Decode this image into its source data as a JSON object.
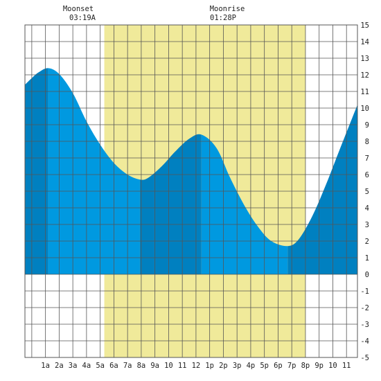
{
  "colors": {
    "background": "#ffffff",
    "daylight": "#f0ea9a",
    "grid": "#555555",
    "tide_light": "#0099e0",
    "tide_dark": "#0080c0",
    "text": "#222222"
  },
  "events": [
    {
      "label": "Moonset",
      "time": "03:19A"
    },
    {
      "label": "Moonrise",
      "time": "01:28P"
    }
  ],
  "chart_data": {
    "type": "area",
    "title": "",
    "xlabel": "",
    "ylabel": "",
    "x_unit": "hour of day",
    "xlim": [
      -0.5,
      23.8
    ],
    "ylim": [
      -5,
      15
    ],
    "grid": true,
    "x_tick_labels": [
      {
        "hour": 1,
        "label": "1a"
      },
      {
        "hour": 2,
        "label": "2a"
      },
      {
        "hour": 3,
        "label": "3a"
      },
      {
        "hour": 4,
        "label": "4a"
      },
      {
        "hour": 5,
        "label": "5a"
      },
      {
        "hour": 6,
        "label": "6a"
      },
      {
        "hour": 7,
        "label": "7a"
      },
      {
        "hour": 8,
        "label": "8a"
      },
      {
        "hour": 9,
        "label": "9a"
      },
      {
        "hour": 10,
        "label": "10"
      },
      {
        "hour": 11,
        "label": "11"
      },
      {
        "hour": 12,
        "label": "12"
      },
      {
        "hour": 13,
        "label": "1p"
      },
      {
        "hour": 14,
        "label": "2p"
      },
      {
        "hour": 15,
        "label": "3p"
      },
      {
        "hour": 16,
        "label": "4p"
      },
      {
        "hour": 17,
        "label": "5p"
      },
      {
        "hour": 18,
        "label": "6p"
      },
      {
        "hour": 19,
        "label": "7p"
      },
      {
        "hour": 20,
        "label": "8p"
      },
      {
        "hour": 21,
        "label": "9p"
      },
      {
        "hour": 22,
        "label": "10"
      },
      {
        "hour": 23,
        "label": "11"
      }
    ],
    "y_ticks": [
      15,
      14,
      13,
      12,
      11,
      10,
      9,
      8,
      7,
      6,
      5,
      4,
      3,
      2,
      1,
      0,
      -1,
      -2,
      -3,
      -4,
      -5
    ],
    "daylight": {
      "start": 5.3,
      "end": 20.0
    },
    "extremes": [
      {
        "hour": 1.2,
        "height": 12.4,
        "kind": "high"
      },
      {
        "hour": 7.9,
        "height": 5.7,
        "kind": "low"
      },
      {
        "hour": 12.4,
        "height": 8.4,
        "kind": "high"
      },
      {
        "hour": 18.7,
        "height": 1.7,
        "kind": "low"
      }
    ],
    "series": [
      {
        "values": [
          [
            -0.5,
            11.4
          ],
          [
            0.0,
            11.8
          ],
          [
            0.5,
            12.15
          ],
          [
            1.2,
            12.4
          ],
          [
            2.0,
            12.05
          ],
          [
            3.0,
            10.9
          ],
          [
            4.0,
            9.2
          ],
          [
            5.0,
            7.8
          ],
          [
            6.0,
            6.7
          ],
          [
            7.0,
            6.0
          ],
          [
            7.9,
            5.7
          ],
          [
            8.5,
            5.8
          ],
          [
            9.5,
            6.5
          ],
          [
            10.5,
            7.4
          ],
          [
            11.5,
            8.15
          ],
          [
            12.4,
            8.4
          ],
          [
            13.5,
            7.6
          ],
          [
            14.5,
            5.8
          ],
          [
            15.5,
            4.2
          ],
          [
            16.5,
            2.9
          ],
          [
            17.5,
            2.0
          ],
          [
            18.7,
            1.7
          ],
          [
            19.5,
            2.1
          ],
          [
            20.5,
            3.5
          ],
          [
            21.5,
            5.4
          ],
          [
            22.5,
            7.5
          ],
          [
            23.8,
            10.2
          ]
        ]
      }
    ],
    "shading_bands": [
      {
        "from": -0.5,
        "to": 1.2,
        "tone": "dark"
      },
      {
        "from": 1.2,
        "to": 7.9,
        "tone": "light"
      },
      {
        "from": 7.9,
        "to": 12.4,
        "tone": "dark"
      },
      {
        "from": 12.4,
        "to": 18.7,
        "tone": "light"
      },
      {
        "from": 18.7,
        "to": 23.8,
        "tone": "dark"
      }
    ]
  }
}
